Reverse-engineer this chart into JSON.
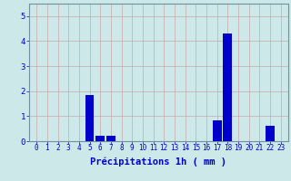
{
  "hours": [
    0,
    1,
    2,
    3,
    4,
    5,
    6,
    7,
    8,
    9,
    10,
    11,
    12,
    13,
    14,
    15,
    16,
    17,
    18,
    19,
    20,
    21,
    22,
    23
  ],
  "values": [
    0,
    0,
    0,
    0,
    0,
    1.85,
    0.2,
    0.2,
    0,
    0,
    0,
    0,
    0,
    0,
    0,
    0,
    0,
    0.85,
    4.3,
    0,
    0,
    0,
    0.6,
    0
  ],
  "bar_color": "#0000cc",
  "background_color": "#cce8e8",
  "grid_color": "#c8a8a8",
  "tick_color": "#0000cc",
  "label_color": "#0000cc",
  "xlabel": "Précipitations 1h ( mm )",
  "ylim": [
    0,
    5.5
  ],
  "yticks": [
    0,
    1,
    2,
    3,
    4,
    5
  ],
  "xlabel_fontsize": 7.5,
  "tick_fontsize": 5.5
}
